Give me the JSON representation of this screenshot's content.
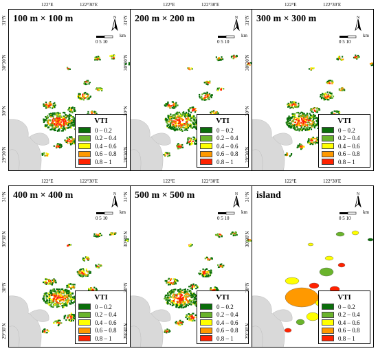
{
  "panels": [
    {
      "title": "100 m × 100 m",
      "kind": "grid"
    },
    {
      "title": "200 m × 200 m",
      "kind": "grid"
    },
    {
      "title": "300 m × 300 m",
      "kind": "grid"
    },
    {
      "title": "400 m × 400 m",
      "kind": "grid"
    },
    {
      "title": "500 m × 500 m",
      "kind": "grid"
    },
    {
      "title": "island",
      "kind": "island"
    }
  ],
  "legend": {
    "title": "VTI",
    "classes": [
      {
        "label": "0 – 0.2",
        "color": "#0a6e0a"
      },
      {
        "label": "0.2 – 0.4",
        "color": "#6ab42c"
      },
      {
        "label": "0.4 – 0.6",
        "color": "#ffff00"
      },
      {
        "label": "0.6 – 0.8",
        "color": "#ff9900"
      },
      {
        "label": "0.8 – 1",
        "color": "#ff2200"
      }
    ]
  },
  "axes": {
    "x_ticks": [
      "122°E",
      "122°30′E"
    ],
    "y_ticks": [
      "31°N",
      "30°30′N",
      "30°N",
      "29°30′N"
    ]
  },
  "north_arrow": {
    "label": "N"
  },
  "scale": {
    "units": "km",
    "ticks": "0  5 10"
  },
  "colors": {
    "sea": "#ffffff",
    "mainland": "#d9d9d9"
  }
}
